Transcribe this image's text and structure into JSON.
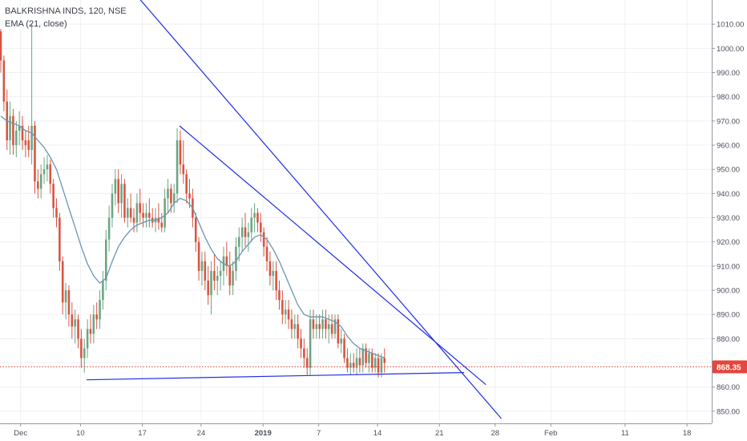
{
  "legend": {
    "title": "BALKRISHNA INDS, 120, NSE",
    "indicator": "EMA (21, close)"
  },
  "colors": {
    "up": "#6ba583",
    "down": "#d75442",
    "ema": "#6a96b0",
    "trendline": "#1f2ee6",
    "price_line": "#e5453a",
    "grid": "#eef0f3",
    "axis_text": "#4b505a"
  },
  "chart_data": {
    "type": "candlestick",
    "ylim": [
      845,
      1020
    ],
    "y_ticks": [
      850,
      860,
      870,
      880,
      890,
      900,
      910,
      920,
      930,
      940,
      950,
      960,
      970,
      980,
      990,
      1000,
      1010
    ],
    "x_ticks": [
      {
        "label": "Dec",
        "x": 3.33,
        "bold": false
      },
      {
        "label": "10",
        "x": 13.0,
        "bold": false
      },
      {
        "label": "17",
        "x": 23.0,
        "bold": false
      },
      {
        "label": "24",
        "x": 32.5,
        "bold": false
      },
      {
        "label": "2019",
        "x": 42.5,
        "bold": true
      },
      {
        "label": "7",
        "x": 51.5,
        "bold": false
      },
      {
        "label": "14",
        "x": 61.0,
        "bold": false
      },
      {
        "label": "21",
        "x": 71.0,
        "bold": false
      },
      {
        "label": "28",
        "x": 80.0,
        "bold": false
      },
      {
        "label": "Feb",
        "x": 89.0,
        "bold": false
      },
      {
        "label": "11",
        "x": 101.0,
        "bold": false
      },
      {
        "label": "18",
        "x": 111.0,
        "bold": false
      }
    ],
    "last_price": "868.35",
    "last_value": 868.35,
    "candles": [
      [
        0.0,
        1007,
        1008,
        990,
        995
      ],
      [
        0.5,
        995,
        997,
        974,
        978
      ],
      [
        1.0,
        978,
        983,
        958,
        962
      ],
      [
        1.5,
        962,
        978,
        956,
        972
      ],
      [
        2.0,
        972,
        975,
        956,
        960
      ],
      [
        2.5,
        960,
        970,
        955,
        966
      ],
      [
        3.0,
        966,
        974,
        960,
        968
      ],
      [
        3.5,
        968,
        972,
        958,
        962
      ],
      [
        4.0,
        962,
        966,
        955,
        960
      ],
      [
        4.5,
        962,
        968,
        955,
        958
      ],
      [
        5.0,
        958,
        1010,
        952,
        968
      ],
      [
        5.5,
        968,
        970,
        940,
        945
      ],
      [
        6.0,
        945,
        950,
        938,
        942
      ],
      [
        6.5,
        942,
        952,
        938,
        948
      ],
      [
        7.0,
        948,
        955,
        944,
        950
      ],
      [
        7.5,
        950,
        956,
        945,
        952
      ],
      [
        8.0,
        952,
        954,
        940,
        944
      ],
      [
        8.5,
        944,
        946,
        930,
        934
      ],
      [
        9.0,
        934,
        938,
        926,
        930
      ],
      [
        9.5,
        930,
        932,
        908,
        912
      ],
      [
        10.0,
        912,
        914,
        890,
        895
      ],
      [
        10.5,
        895,
        903,
        888,
        900
      ],
      [
        11.0,
        900,
        902,
        885,
        890
      ],
      [
        11.5,
        890,
        895,
        880,
        885
      ],
      [
        12.0,
        885,
        892,
        878,
        888
      ],
      [
        12.5,
        888,
        890,
        876,
        880
      ],
      [
        13.0,
        880,
        884,
        868,
        872
      ],
      [
        13.5,
        872,
        880,
        866,
        876
      ],
      [
        14.0,
        876,
        888,
        872,
        884
      ],
      [
        14.5,
        884,
        890,
        878,
        882
      ],
      [
        15.0,
        882,
        894,
        878,
        890
      ],
      [
        15.5,
        890,
        895,
        884,
        888
      ],
      [
        16.0,
        888,
        900,
        884,
        896
      ],
      [
        16.5,
        896,
        908,
        892,
        904
      ],
      [
        17.0,
        904,
        925,
        900,
        921
      ],
      [
        17.5,
        921,
        935,
        916,
        930
      ],
      [
        18.0,
        930,
        944,
        926,
        940
      ],
      [
        18.5,
        940,
        950,
        935,
        946
      ],
      [
        19.0,
        946,
        950,
        932,
        936
      ],
      [
        19.5,
        936,
        948,
        930,
        944
      ],
      [
        20.0,
        944,
        946,
        928,
        930
      ],
      [
        20.5,
        930,
        938,
        926,
        934
      ],
      [
        21.0,
        934,
        940,
        928,
        930
      ],
      [
        21.5,
        930,
        934,
        924,
        928
      ],
      [
        22.0,
        928,
        940,
        924,
        936
      ],
      [
        22.5,
        936,
        942,
        928,
        932
      ],
      [
        23.0,
        932,
        936,
        926,
        930
      ],
      [
        23.5,
        930,
        936,
        926,
        932
      ],
      [
        24.0,
        932,
        938,
        926,
        930
      ],
      [
        24.5,
        930,
        934,
        926,
        928
      ],
      [
        25.0,
        928,
        934,
        924,
        930
      ],
      [
        25.5,
        930,
        936,
        925,
        928
      ],
      [
        26.0,
        928,
        932,
        924,
        926
      ],
      [
        26.5,
        926,
        942,
        924,
        938
      ],
      [
        27.0,
        938,
        946,
        932,
        942
      ],
      [
        27.5,
        942,
        944,
        932,
        936
      ],
      [
        28.0,
        936,
        944,
        932,
        940
      ],
      [
        28.5,
        940,
        967,
        936,
        962
      ],
      [
        29.0,
        962,
        966,
        948,
        952
      ],
      [
        29.5,
        952,
        962,
        944,
        948
      ],
      [
        30.0,
        948,
        950,
        936,
        940
      ],
      [
        30.5,
        940,
        946,
        934,
        938
      ],
      [
        31.0,
        938,
        942,
        926,
        930
      ],
      [
        31.5,
        930,
        932,
        916,
        920
      ],
      [
        32.0,
        920,
        922,
        904,
        908
      ],
      [
        32.5,
        908,
        916,
        902,
        912
      ],
      [
        33.0,
        912,
        916,
        900,
        904
      ],
      [
        33.5,
        904,
        910,
        894,
        898
      ],
      [
        34.0,
        898,
        912,
        890,
        908
      ],
      [
        34.5,
        908,
        915,
        900,
        904
      ],
      [
        35.0,
        904,
        910,
        898,
        906
      ],
      [
        35.5,
        906,
        912,
        900,
        908
      ],
      [
        36.0,
        908,
        918,
        902,
        914
      ],
      [
        36.5,
        914,
        920,
        906,
        910
      ],
      [
        37.0,
        910,
        916,
        898,
        902
      ],
      [
        37.5,
        902,
        912,
        898,
        908
      ],
      [
        38.0,
        908,
        922,
        904,
        918
      ],
      [
        38.5,
        918,
        926,
        912,
        922
      ],
      [
        39.0,
        922,
        930,
        916,
        926
      ],
      [
        39.5,
        926,
        932,
        918,
        922
      ],
      [
        40.0,
        922,
        928,
        916,
        924
      ],
      [
        40.5,
        924,
        934,
        920,
        930
      ],
      [
        41.0,
        930,
        936,
        924,
        932
      ],
      [
        41.5,
        932,
        934,
        924,
        928
      ],
      [
        42.0,
        928,
        932,
        920,
        924
      ],
      [
        42.5,
        924,
        926,
        914,
        918
      ],
      [
        43.0,
        918,
        922,
        908,
        912
      ],
      [
        43.5,
        912,
        916,
        902,
        906
      ],
      [
        44.0,
        906,
        912,
        900,
        908
      ],
      [
        44.5,
        908,
        912,
        896,
        900
      ],
      [
        45.0,
        900,
        904,
        892,
        896
      ],
      [
        45.5,
        896,
        900,
        886,
        890
      ],
      [
        46.0,
        890,
        896,
        886,
        892
      ],
      [
        46.5,
        892,
        896,
        884,
        888
      ],
      [
        47.0,
        888,
        892,
        880,
        884
      ],
      [
        47.5,
        884,
        890,
        880,
        886
      ],
      [
        48.0,
        886,
        890,
        876,
        880
      ],
      [
        48.5,
        880,
        884,
        872,
        876
      ],
      [
        49.0,
        876,
        880,
        868,
        872
      ],
      [
        49.5,
        872,
        876,
        865,
        868
      ],
      [
        50.0,
        868,
        892,
        865,
        888
      ],
      [
        50.5,
        888,
        892,
        880,
        884
      ],
      [
        51.0,
        884,
        890,
        880,
        886
      ],
      [
        51.5,
        886,
        890,
        880,
        884
      ],
      [
        52.0,
        884,
        892,
        880,
        888
      ],
      [
        52.5,
        888,
        892,
        880,
        884
      ],
      [
        53.0,
        884,
        890,
        878,
        886
      ],
      [
        53.5,
        886,
        890,
        880,
        882
      ],
      [
        54.0,
        882,
        890,
        880,
        888
      ],
      [
        54.5,
        888,
        890,
        876,
        878
      ],
      [
        55.0,
        878,
        884,
        874,
        880
      ],
      [
        55.5,
        880,
        882,
        870,
        872
      ],
      [
        56.0,
        872,
        876,
        866,
        868
      ],
      [
        56.5,
        868,
        874,
        865,
        870
      ],
      [
        57.0,
        870,
        874,
        866,
        868
      ],
      [
        57.5,
        868,
        876,
        865,
        872
      ],
      [
        58.0,
        872,
        876,
        866,
        869
      ],
      [
        58.5,
        869,
        878,
        866,
        876
      ],
      [
        59.0,
        876,
        878,
        868,
        870
      ],
      [
        59.5,
        870,
        876,
        866,
        874
      ],
      [
        60.0,
        874,
        876,
        866,
        868
      ],
      [
        60.5,
        868,
        874,
        866,
        872
      ],
      [
        61.0,
        872,
        874,
        864,
        866
      ],
      [
        61.5,
        866,
        874,
        864,
        872
      ],
      [
        62.0,
        872,
        876,
        866,
        870
      ]
    ],
    "ema": [
      [
        0.0,
        972
      ],
      [
        1.0,
        970
      ],
      [
        2.0,
        969
      ],
      [
        3.0,
        968
      ],
      [
        4.0,
        966
      ],
      [
        5.0,
        965
      ],
      [
        6.0,
        962
      ],
      [
        7.0,
        959
      ],
      [
        8.0,
        955
      ],
      [
        9.0,
        950
      ],
      [
        10.0,
        942
      ],
      [
        11.0,
        934
      ],
      [
        12.0,
        926
      ],
      [
        13.0,
        918
      ],
      [
        14.0,
        911
      ],
      [
        15.0,
        906
      ],
      [
        16.0,
        903
      ],
      [
        17.0,
        905
      ],
      [
        18.0,
        912
      ],
      [
        19.0,
        918
      ],
      [
        20.0,
        922
      ],
      [
        21.0,
        925
      ],
      [
        22.0,
        927
      ],
      [
        23.0,
        928
      ],
      [
        24.0,
        929
      ],
      [
        25.0,
        929
      ],
      [
        26.0,
        930
      ],
      [
        27.0,
        932
      ],
      [
        28.0,
        936
      ],
      [
        29.0,
        938
      ],
      [
        30.0,
        937
      ],
      [
        31.0,
        934
      ],
      [
        32.0,
        928
      ],
      [
        33.0,
        922
      ],
      [
        34.0,
        917
      ],
      [
        35.0,
        913
      ],
      [
        36.0,
        911
      ],
      [
        37.0,
        910
      ],
      [
        38.0,
        912
      ],
      [
        39.0,
        916
      ],
      [
        40.0,
        919
      ],
      [
        41.0,
        922
      ],
      [
        42.0,
        923
      ],
      [
        43.0,
        921
      ],
      [
        44.0,
        917
      ],
      [
        45.0,
        912
      ],
      [
        46.0,
        906
      ],
      [
        47.0,
        900
      ],
      [
        48.0,
        894
      ],
      [
        49.0,
        890
      ],
      [
        50.0,
        889
      ],
      [
        51.0,
        889
      ],
      [
        52.0,
        889
      ],
      [
        53.0,
        888
      ],
      [
        54.0,
        887
      ],
      [
        55.0,
        885
      ],
      [
        56.0,
        881
      ],
      [
        57.0,
        878
      ],
      [
        58.0,
        876
      ],
      [
        59.0,
        875
      ],
      [
        60.0,
        874
      ],
      [
        61.0,
        873
      ],
      [
        62.0,
        872
      ]
    ],
    "trendlines": [
      {
        "from": [
          20.0,
          1028
        ],
        "to": [
          81.0,
          847
        ]
      },
      {
        "from": [
          29.0,
          968
        ],
        "to": [
          78.5,
          861
        ]
      },
      {
        "from": [
          14.0,
          863
        ],
        "to": [
          75.0,
          866
        ]
      }
    ]
  }
}
